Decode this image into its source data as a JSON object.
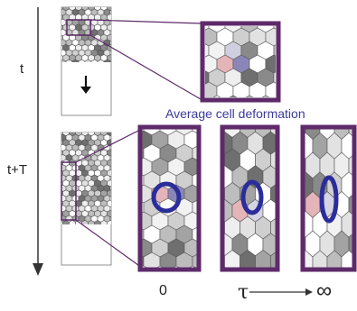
{
  "time_axis": {
    "start_label": "t",
    "end_label": "t+T"
  },
  "caption": "Average cell deformation",
  "relaxation_axis": {
    "symbol": "τ",
    "start": "0",
    "end": "∞"
  },
  "colors": {
    "frame": "#5e2a6a",
    "ellipse": "#2a2d9a",
    "caption_text": "#3a3a9c",
    "highlight_cell": "#e4b4b8",
    "highlight_center": "#8a87b8",
    "axis": "#333333",
    "cell_edge": "#555555"
  }
}
